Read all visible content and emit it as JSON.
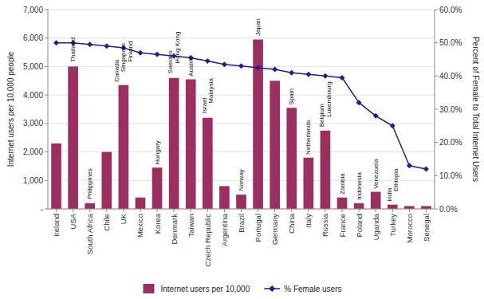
{
  "chart_data": {
    "type": "bar",
    "categories": [
      "Ireland",
      "USA",
      "South Africa",
      "Chile",
      "UK",
      "Mexico",
      "Korea",
      "Denmark",
      "Taiwan",
      "Czech Republic",
      "Argentina",
      "Brazil",
      "Portugal",
      "Germany",
      "China",
      "Italy",
      "Russia",
      "France",
      "Poland",
      "Uganda",
      "Turkey",
      "Morocco",
      "Senegal"
    ],
    "series": [
      {
        "name": "Internet users per 10,000",
        "type": "bar",
        "color": "#9B3060",
        "axis": "y",
        "values": [
          2300,
          5000,
          200,
          2000,
          4350,
          400,
          1450,
          4600,
          4550,
          3200,
          800,
          500,
          5950,
          4500,
          3550,
          1800,
          2750,
          400,
          200,
          600,
          150,
          100,
          100
        ]
      },
      {
        "name": "% Female users",
        "type": "line",
        "color": "#1F1F8C",
        "axis": "y2",
        "marker": "diamond",
        "values": [
          50.0,
          50.0,
          49.5,
          49.0,
          48.5,
          47.0,
          46.5,
          46.0,
          45.5,
          44.5,
          43.5,
          43.0,
          42.5,
          42.0,
          41.0,
          40.5,
          40.0,
          39.5,
          32.0,
          28.0,
          25.0,
          13.0,
          12.0
        ]
      }
    ],
    "ylabel": "Internet users per 10,000 people",
    "y2label": "Percent of Female to Total Internet Users",
    "ylim": [
      0,
      7000
    ],
    "yticks": [
      {
        "value": 0,
        "label": "-"
      },
      {
        "value": 1000,
        "label": "1,000"
      },
      {
        "value": 2000,
        "label": "2,000"
      },
      {
        "value": 3000,
        "label": "3,000"
      },
      {
        "value": 4000,
        "label": "4,000"
      },
      {
        "value": 5000,
        "label": "5,000"
      },
      {
        "value": 6000,
        "label": "6,000"
      },
      {
        "value": 7000,
        "label": "7,000"
      }
    ],
    "y2lim": [
      0,
      60
    ],
    "y2ticks": [
      {
        "value": 0,
        "label": "0.0%"
      },
      {
        "value": 10,
        "label": "10.0%"
      },
      {
        "value": 20,
        "label": "20.0%"
      },
      {
        "value": 30,
        "label": "30.0%"
      },
      {
        "value": 40,
        "label": "40.0%"
      },
      {
        "value": 50,
        "label": "50.0%"
      },
      {
        "value": 60,
        "label": "60.0%"
      }
    ],
    "grid": true,
    "legend": "bottom",
    "annotations": [
      {
        "text": "Thailand",
        "x": "USA",
        "y": 5100
      },
      {
        "text": "Philippines",
        "x": "South Africa",
        "y": 280
      },
      {
        "text": "Canada",
        "x": "UK",
        "y": 4400
      },
      {
        "text": "Singapore",
        "x": "UK",
        "y": 4750
      },
      {
        "text": "Finland",
        "x": "UK",
        "y": 5100
      },
      {
        "text": "Hungary",
        "x": "Korea",
        "y": 1500
      },
      {
        "text": "Sweden",
        "x": "Denmark",
        "y": 4700
      },
      {
        "text": "Hong Kong",
        "x": "Denmark",
        "y": 5050
      },
      {
        "text": "Austria",
        "x": "Taiwan",
        "y": 4600
      },
      {
        "text": "Israel",
        "x": "Czech Republic",
        "y": 3300
      },
      {
        "text": "Malaysia",
        "x": "Czech Republic",
        "y": 3650
      },
      {
        "text": "Norway",
        "x": "Brazil",
        "y": 580
      },
      {
        "text": "Japan",
        "x": "Portugal",
        "y": 6020
      },
      {
        "text": "Spain",
        "x": "China",
        "y": 3600
      },
      {
        "text": "Netherlands",
        "x": "Italy",
        "y": 1850
      },
      {
        "text": "Belgium",
        "x": "Russia",
        "y": 2820
      },
      {
        "text": "Luxembourg",
        "x": "Russia",
        "y": 3170
      },
      {
        "text": "Zambia",
        "x": "France",
        "y": 450
      },
      {
        "text": "Indonesia",
        "x": "Poland",
        "y": 260
      },
      {
        "text": "Venezuela",
        "x": "Uganda",
        "y": 650
      },
      {
        "text": "India",
        "x": "Turkey",
        "y": 200
      },
      {
        "text": "Ethiopia",
        "x": "Turkey",
        "y": 550
      }
    ]
  }
}
